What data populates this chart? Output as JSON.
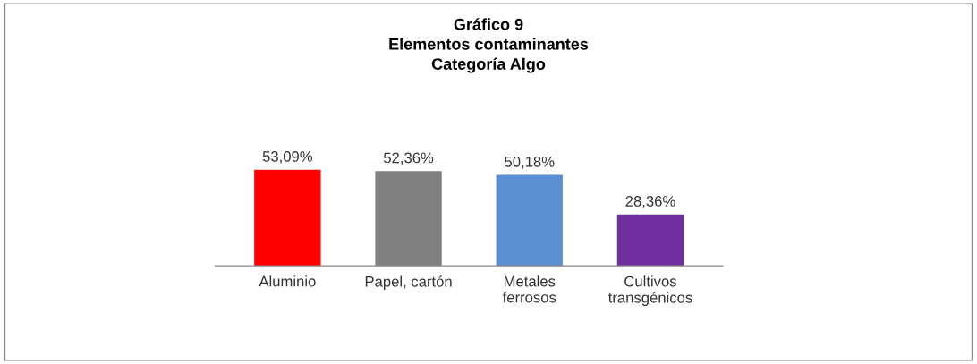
{
  "chart_data": {
    "type": "bar",
    "title": "Gráfico 9\nElementos contaminantes\nCategoría Algo",
    "categories": [
      "Aluminio",
      "Papel, cartón",
      "Metales\nferrosos",
      "Cultivos\ntransgénicos"
    ],
    "values": [
      53.09,
      52.36,
      50.18,
      28.36
    ],
    "colors": [
      "#ff0000",
      "#808080",
      "#5b8fd1",
      "#7030a0"
    ],
    "value_labels": [
      "53,09%",
      "52,36%",
      "50,18%",
      "28,36%"
    ],
    "grid": false,
    "legend": false
  }
}
